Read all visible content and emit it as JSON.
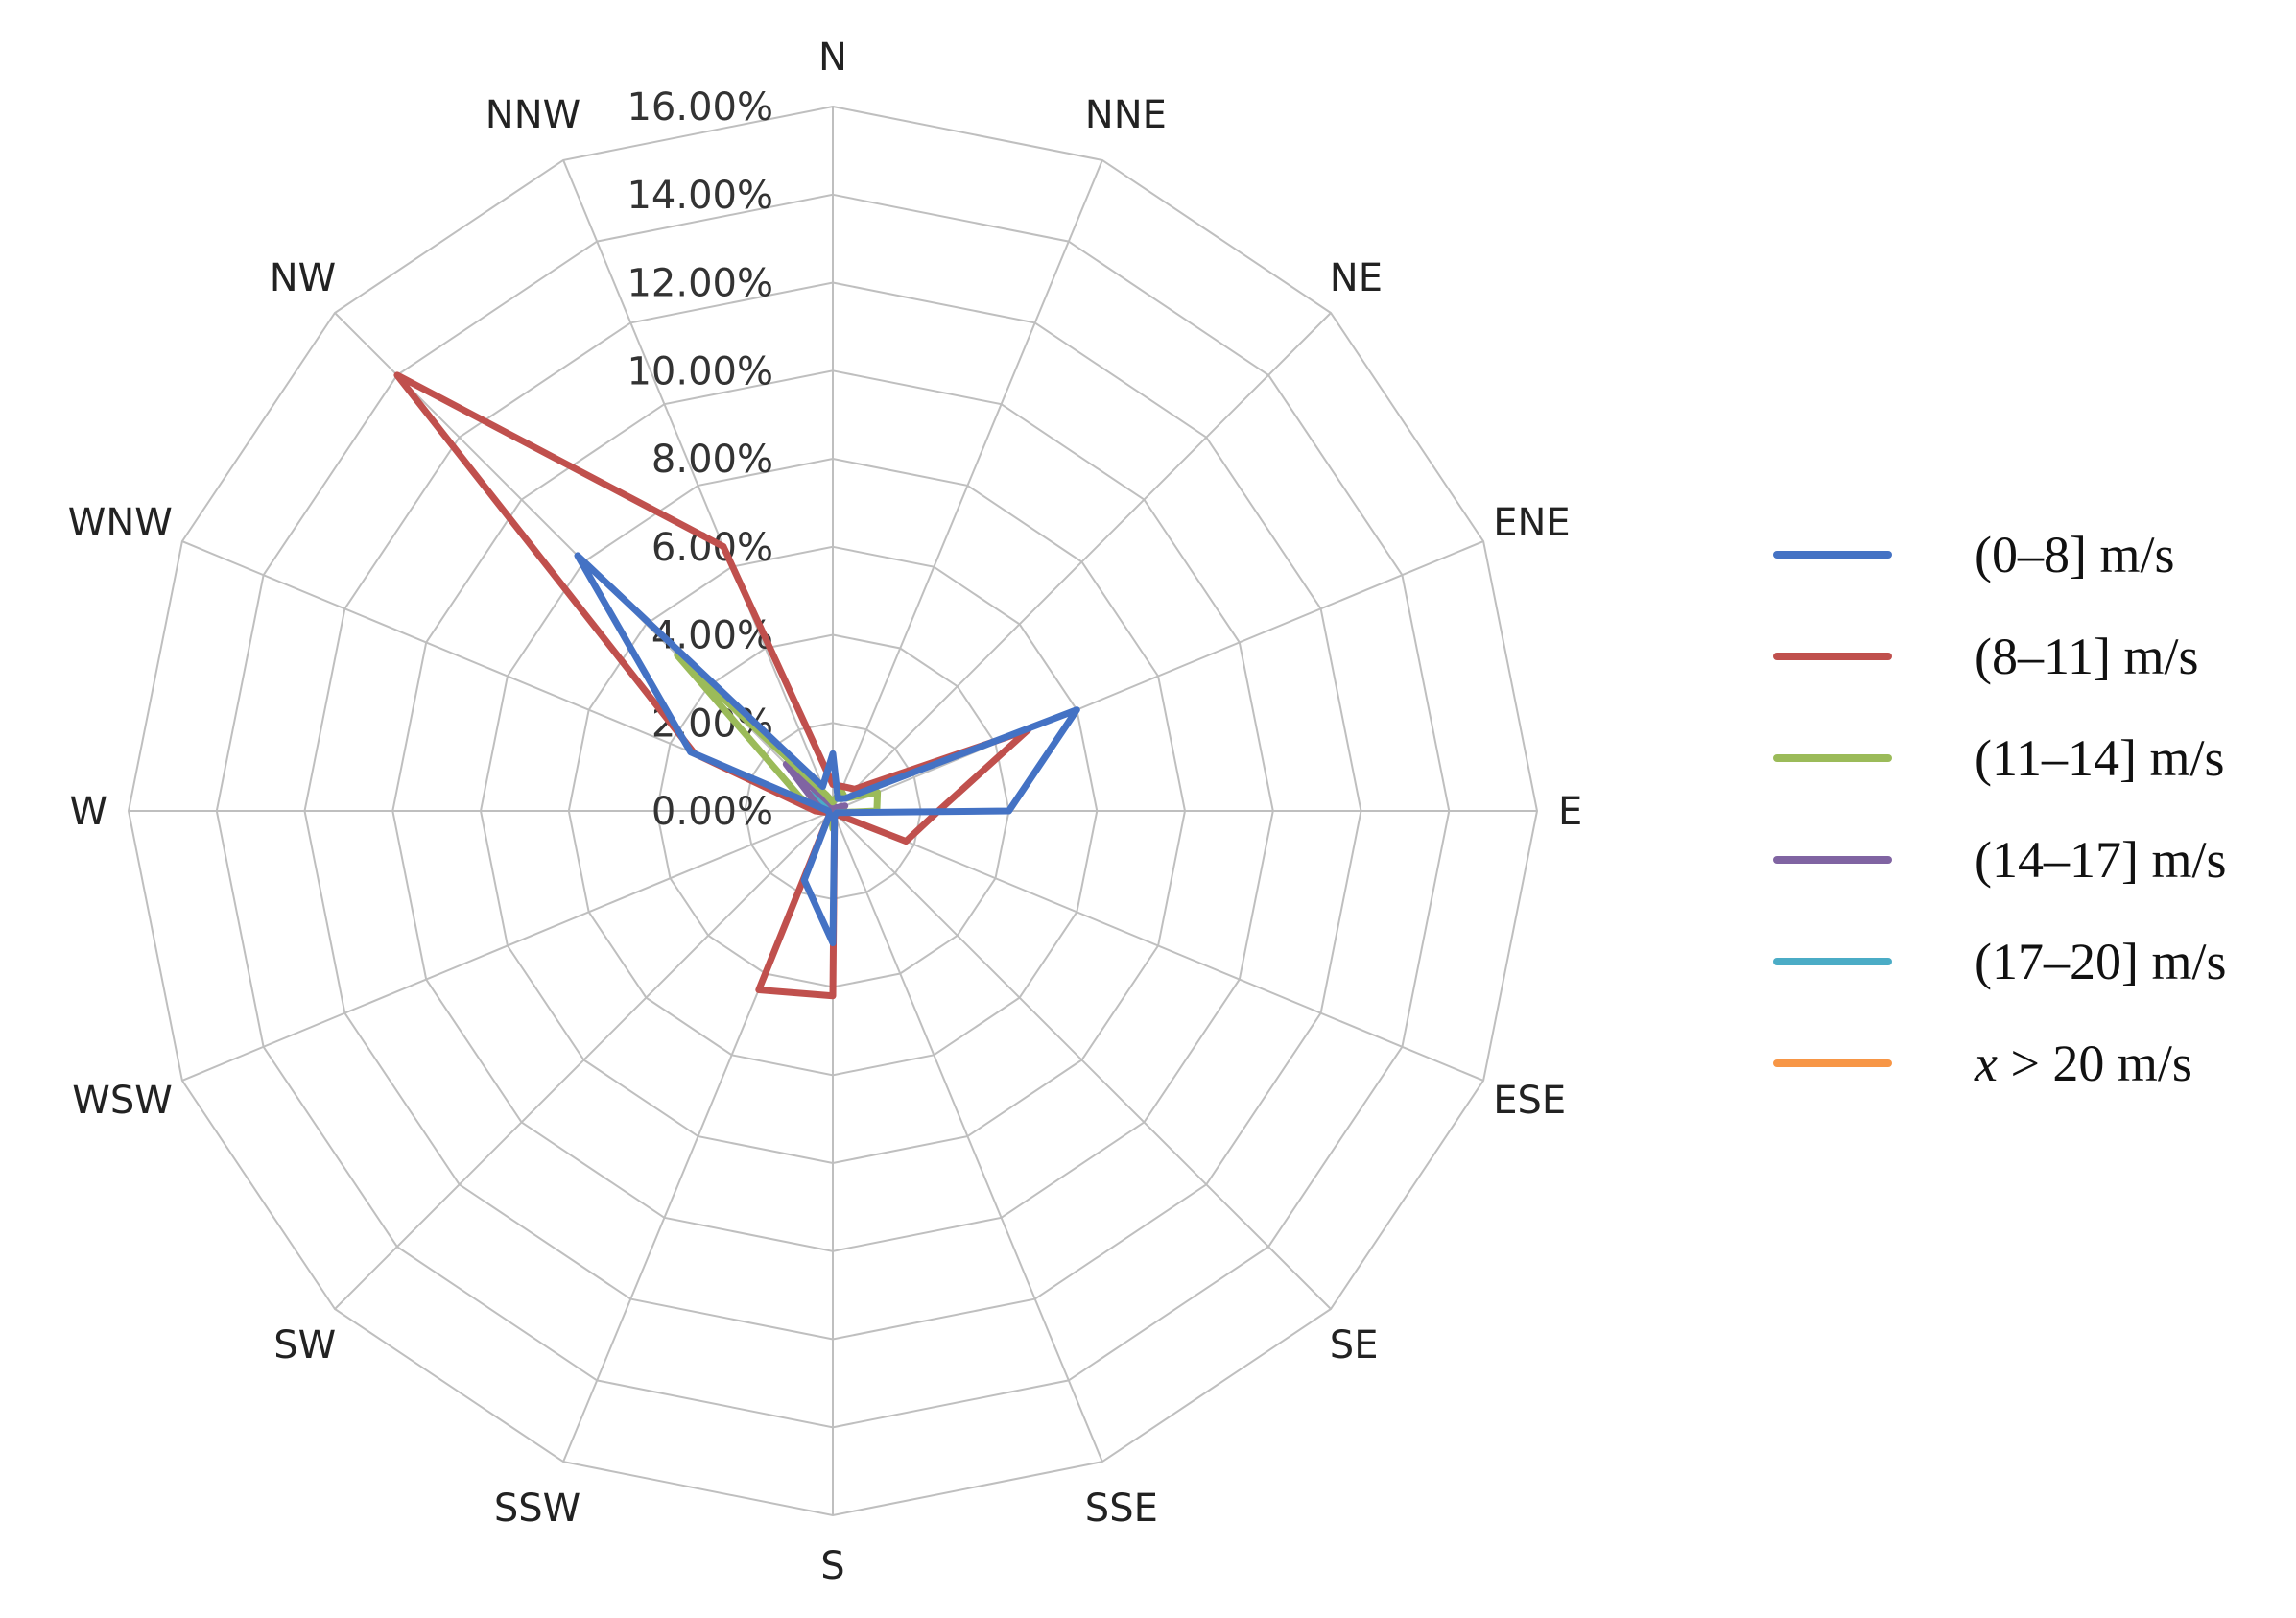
{
  "chart_data": {
    "type": "radar",
    "directions": [
      "N",
      "NNE",
      "NE",
      "ENE",
      "E",
      "ESE",
      "SE",
      "SSE",
      "S",
      "SSW",
      "SW",
      "WSW",
      "W",
      "WNW",
      "NW",
      "NNW"
    ],
    "tick_labels": [
      "0.00%",
      "2.00%",
      "4.00%",
      "6.00%",
      "8.00%",
      "10.00%",
      "12.00%",
      "14.00%",
      "16.00%"
    ],
    "rlim": [
      0,
      16
    ],
    "grid": true,
    "legend_position": "right",
    "series": [
      {
        "name": "(0–8] m/s",
        "color": "#4472c4",
        "values": [
          1.3,
          0.3,
          0.4,
          6.0,
          4.0,
          0.1,
          0.1,
          0.1,
          3.0,
          1.7,
          0.1,
          0.1,
          0.1,
          3.5,
          8.2,
          0.6
        ]
      },
      {
        "name": "(8–11] m/s",
        "color": "#c0504d",
        "values": [
          0.6,
          0.6,
          0.7,
          4.8,
          2.4,
          1.8,
          0.1,
          0.1,
          4.2,
          4.4,
          0.1,
          0.1,
          0.4,
          3.4,
          14.0,
          6.5
        ]
      },
      {
        "name": "(11–14] m/s",
        "color": "#9bbb59",
        "values": [
          0.2,
          0.5,
          0.4,
          1.1,
          1.0,
          0.1,
          0.1,
          0.1,
          0.4,
          0.1,
          0.1,
          0.1,
          0.3,
          0.8,
          5.0,
          0.4
        ]
      },
      {
        "name": "(14–17] m/s",
        "color": "#8064a2",
        "values": [
          0.1,
          0.1,
          0.1,
          0.3,
          0.2,
          0.05,
          0.05,
          0.05,
          0.2,
          0.05,
          0.05,
          0.05,
          0.2,
          0.4,
          1.5,
          0.2
        ]
      },
      {
        "name": "(17–20] m/s",
        "color": "#4bacc6",
        "values": [
          0.05,
          0.05,
          0.05,
          0.15,
          0.1,
          0.05,
          0.05,
          0.05,
          0.1,
          0.05,
          0.05,
          0.05,
          0.1,
          0.2,
          0.6,
          0.1
        ]
      },
      {
        "name": "x > 20 m/s",
        "color": "#f79646",
        "values": [
          0.05,
          0.05,
          0.05,
          0.1,
          0.1,
          0.05,
          0.05,
          0.05,
          0.1,
          0.05,
          0.05,
          0.05,
          0.1,
          0.1,
          0.3,
          0.1
        ]
      }
    ]
  }
}
